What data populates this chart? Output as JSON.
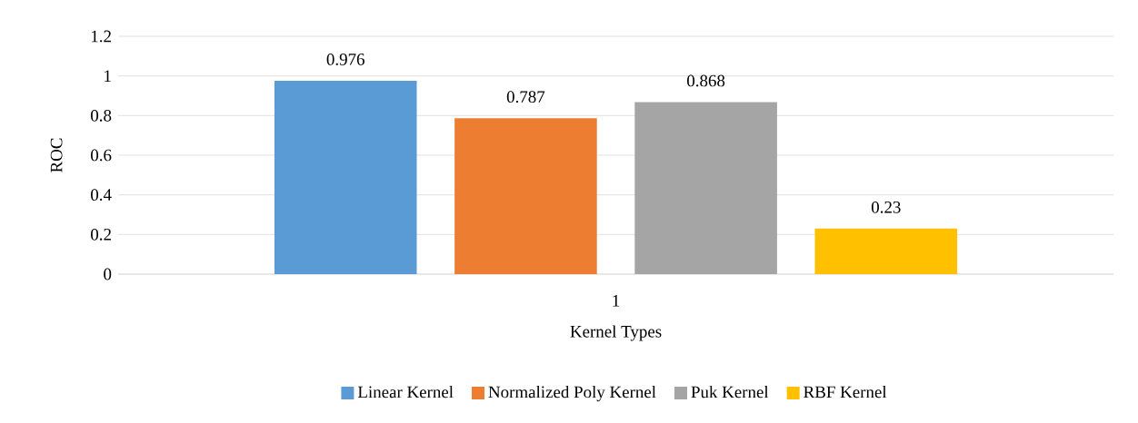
{
  "chart_data": {
    "type": "bar",
    "xlabel": "Kernel Types",
    "ylabel": "ROC",
    "categories": [
      "1"
    ],
    "series": [
      {
        "name": "Linear Kernel",
        "color": "#5b9bd5",
        "values": [
          0.976
        ]
      },
      {
        "name": "Normalized Poly Kernel",
        "color": "#ed7d31",
        "values": [
          0.787
        ]
      },
      {
        "name": "Puk Kernel",
        "color": "#a5a5a5",
        "values": [
          0.868
        ]
      },
      {
        "name": "RBF Kernel",
        "color": "#ffc000",
        "values": [
          0.23
        ]
      }
    ],
    "ylim": [
      0,
      1.2
    ],
    "yticks": [
      0,
      0.2,
      0.4,
      0.6,
      0.8,
      1,
      1.2
    ],
    "grid": "y",
    "legend": "bottom",
    "data_labels": true
  }
}
